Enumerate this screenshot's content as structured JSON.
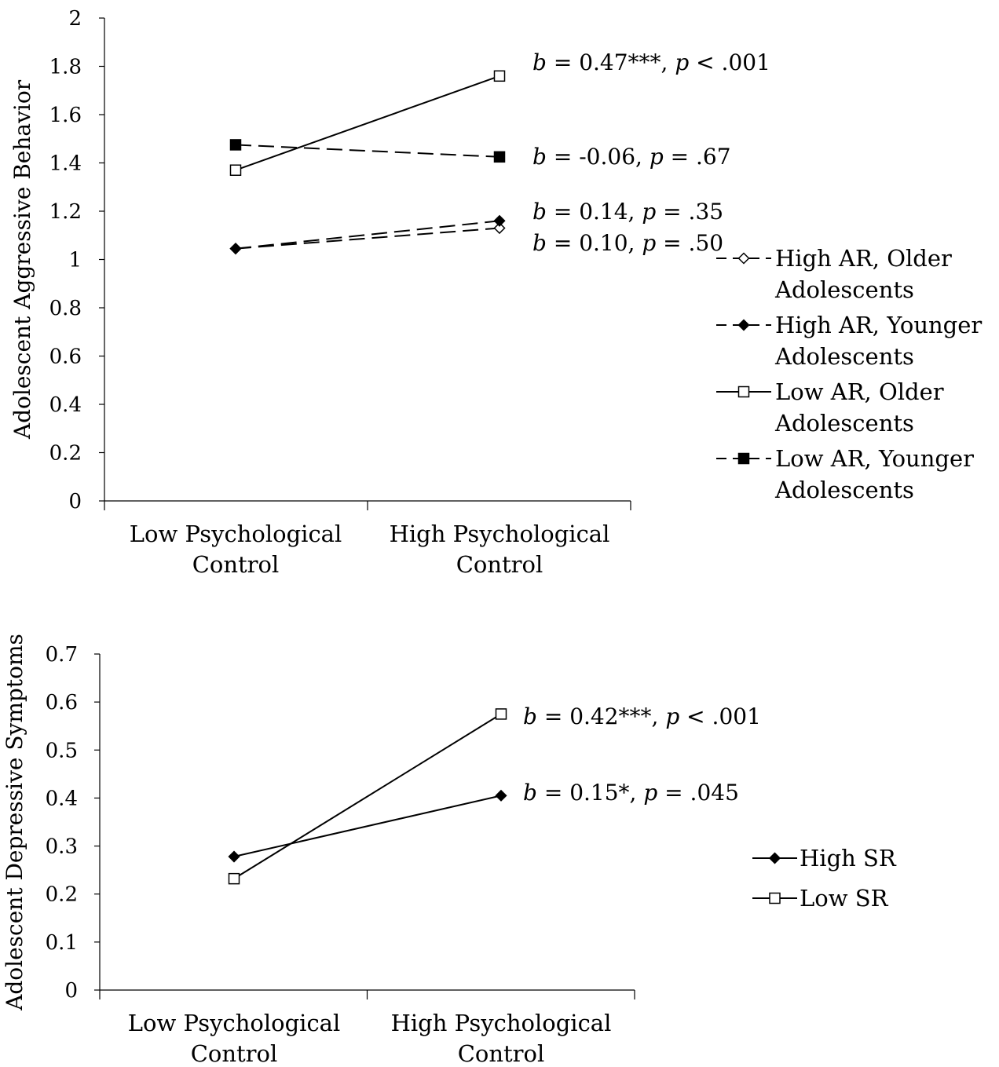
{
  "chart_data": [
    {
      "type": "line",
      "title": "",
      "ylabel": "Adolescent Aggressive Behavior",
      "xlabel": "",
      "categories": [
        [
          "Low Psychological",
          "Control"
        ],
        [
          "High Psychological",
          "Control"
        ]
      ],
      "ylim": [
        0,
        2
      ],
      "ytick_step": 0.2,
      "yticks": [
        "0",
        "0.2",
        "0.4",
        "0.6",
        "0.8",
        "1",
        "1.2",
        "1.4",
        "1.6",
        "1.8",
        "2"
      ],
      "grid": false,
      "legend_position": "right",
      "series": [
        {
          "name": [
            "High AR, Older",
            "Adolescents"
          ],
          "values": [
            1.045,
            1.13
          ],
          "dash": true,
          "marker": "diamond-open",
          "annotation": {
            "b": "b",
            "mid": " = 0.10, ",
            "p": "p",
            "tail": " = .50"
          }
        },
        {
          "name": [
            "High AR, Younger",
            "Adolescents"
          ],
          "values": [
            1.045,
            1.16
          ],
          "dash": true,
          "marker": "diamond-filled",
          "annotation": {
            "b": "b",
            "mid": " = 0.14, ",
            "p": "p",
            "tail": " = .35"
          }
        },
        {
          "name": [
            "Low AR, Older",
            "Adolescents"
          ],
          "values": [
            1.37,
            1.76
          ],
          "dash": false,
          "marker": "square-open",
          "annotation": {
            "b": "b",
            "mid": " = 0.47***, ",
            "p": "p",
            "tail": " < .001"
          }
        },
        {
          "name": [
            "Low AR, Younger",
            "Adolescents"
          ],
          "values": [
            1.475,
            1.425
          ],
          "dash": true,
          "marker": "square-filled",
          "annotation": {
            "b": "b",
            "mid": " = -0.06, ",
            "p": "p",
            "tail": " = .67"
          }
        }
      ]
    },
    {
      "type": "line",
      "title": "",
      "ylabel": "Adolescent Depressive Symptoms",
      "xlabel": "",
      "categories": [
        [
          "Low Psychological",
          "Control"
        ],
        [
          "High Psychological",
          "Control"
        ]
      ],
      "ylim": [
        0,
        0.7
      ],
      "ytick_step": 0.1,
      "yticks": [
        "0",
        "0.1",
        "0.2",
        "0.3",
        "0.4",
        "0.5",
        "0.6",
        "0.7"
      ],
      "grid": false,
      "legend_position": "right",
      "series": [
        {
          "name": [
            "High SR"
          ],
          "values": [
            0.278,
            0.405
          ],
          "dash": false,
          "marker": "diamond-filled",
          "annotation": {
            "b": "b",
            "mid": " = 0.15*, ",
            "p": "p",
            "tail": " = .045"
          }
        },
        {
          "name": [
            "Low SR"
          ],
          "values": [
            0.232,
            0.575
          ],
          "dash": false,
          "marker": "square-open",
          "annotation": {
            "b": "b",
            "mid": " = 0.42***, ",
            "p": "p",
            "tail": " < .001"
          }
        }
      ]
    }
  ]
}
